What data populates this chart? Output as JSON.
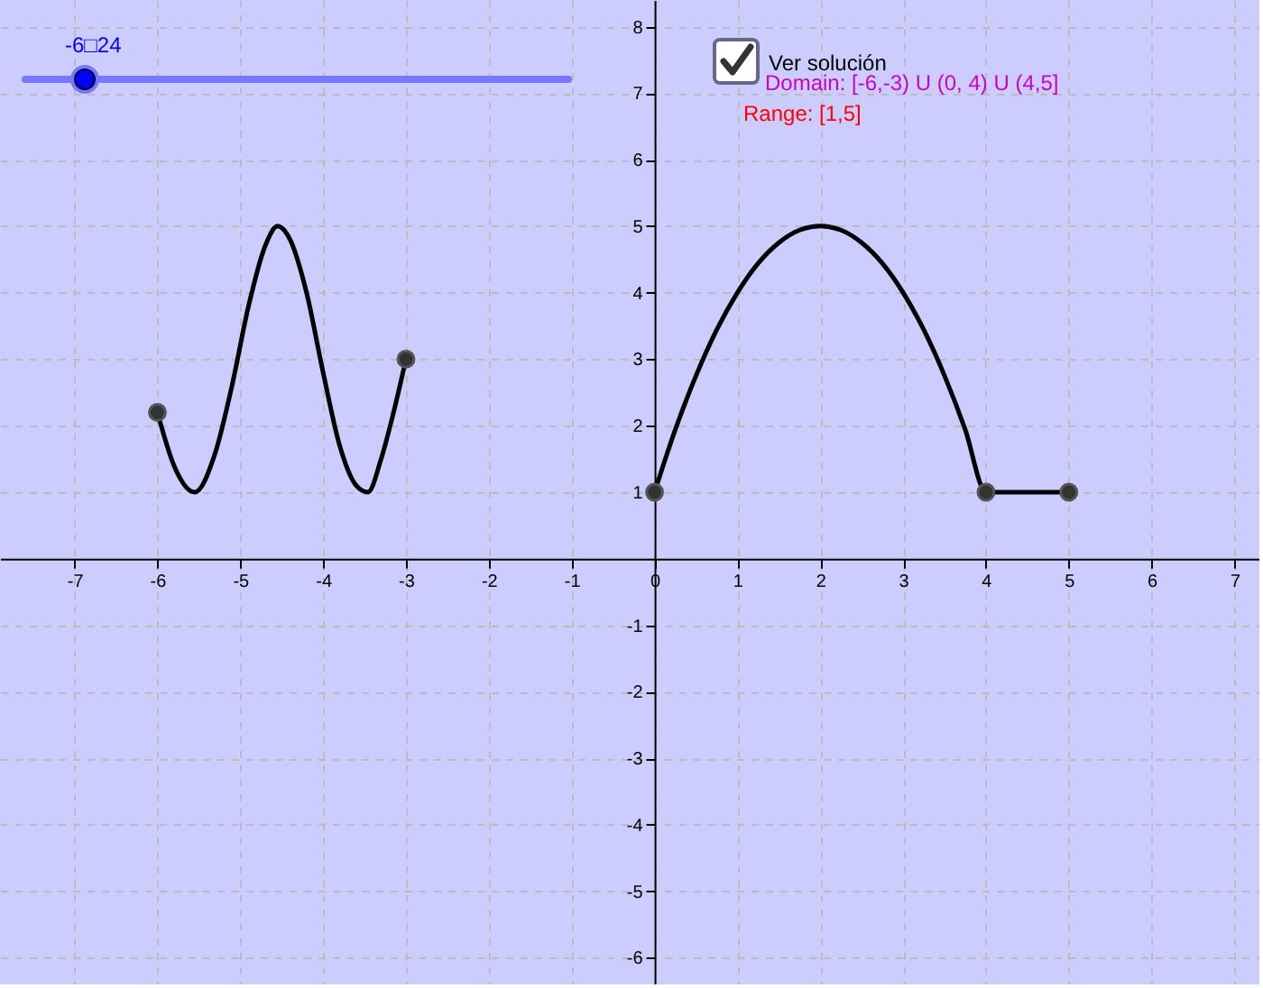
{
  "chart_data": {
    "type": "line",
    "xlim": [
      -7.9,
      7.3
    ],
    "ylim": [
      -6.4,
      8.4
    ],
    "xticks": [
      -7,
      -6,
      -5,
      -4,
      -3,
      -2,
      -1,
      0,
      1,
      2,
      3,
      4,
      5,
      6,
      7
    ],
    "yticks": [
      -6,
      -5,
      -4,
      -3,
      -2,
      -1,
      1,
      2,
      3,
      4,
      5,
      6,
      7,
      8
    ],
    "grid": true,
    "legend": false,
    "series": [
      {
        "type": "line",
        "color": "#000000",
        "x": [
          -6,
          -5.8,
          -5.55,
          -5.3,
          -5.1,
          -4.9,
          -4.7,
          -4.55,
          -4.4,
          -4.2,
          -4.0,
          -3.8,
          -3.6,
          -3.46,
          -3.3,
          -3.15,
          -3,
          -1.5,
          0,
          0.25,
          0.5,
          0.75,
          1,
          1.25,
          1.5,
          1.75,
          2,
          2.25,
          2.5,
          2.75,
          3,
          3.25,
          3.5,
          3.75,
          4,
          5
        ],
        "values": [
          2.2,
          1.4,
          1.0,
          1.6,
          2.6,
          3.8,
          4.7,
          5.0,
          4.8,
          4.0,
          2.8,
          1.7,
          1.1,
          1.0,
          1.5,
          2.2,
          3,
          null,
          1,
          1.94,
          2.75,
          3.44,
          4,
          4.44,
          4.75,
          4.94,
          5,
          4.94,
          4.75,
          4.44,
          4,
          3.44,
          2.75,
          1.94,
          1,
          1
        ]
      },
      {
        "type": "scatter",
        "color": "#333333",
        "marker": "circle",
        "x": [
          -6,
          -3,
          0,
          4,
          5
        ],
        "values": [
          2.2,
          3,
          1,
          1,
          1
        ]
      }
    ],
    "annotations": [
      "-6□24",
      "Ver solución",
      "Domain: [-6,-3) U (0, 4) U (4,5]",
      "Range: [1,5]"
    ]
  }
}
